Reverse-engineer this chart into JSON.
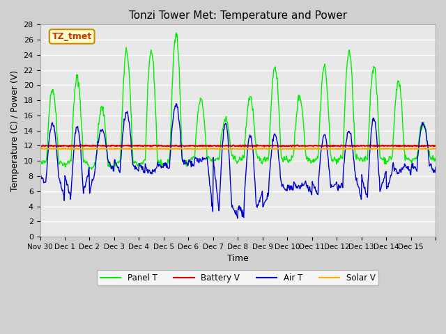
{
  "title": "Tonzi Tower Met: Temperature and Power",
  "xlabel": "Time",
  "ylabel": "Temperature (C) / Power (V)",
  "ylim": [
    0,
    28
  ],
  "yticks": [
    0,
    2,
    4,
    6,
    8,
    10,
    12,
    14,
    16,
    18,
    20,
    22,
    24,
    26,
    28
  ],
  "bg_color": "#e8e8e8",
  "grid_color": "white",
  "label_box": "TZ_tmet",
  "label_box_color": "#cc3300",
  "label_box_bg": "#ffffcc",
  "legend_colors": [
    "#00ee00",
    "#dd0000",
    "#0000cc",
    "#ffaa00"
  ],
  "battery_v": 12.0,
  "solar_v": 11.6,
  "xtick_positions": [
    0,
    1,
    2,
    3,
    4,
    5,
    6,
    7,
    8,
    9,
    10,
    11,
    12,
    13,
    14,
    15,
    16
  ],
  "xtick_labels": [
    "Nov 30",
    "Dec 1",
    "Dec 2",
    "Dec 3",
    "Dec 4",
    "Dec 5",
    "Dec 6",
    "Dec 7",
    "Dec 8",
    "Dec 9",
    "Dec 10",
    "Dec 11",
    "Dec 12",
    "Dec 13",
    "Dec 14",
    "Dec 15",
    ""
  ],
  "panel_T_peaks": [
    19.5,
    21.0,
    17.0,
    24.5,
    24.5,
    27.0,
    18.0,
    15.5,
    18.5,
    22.5,
    18.5,
    22.5,
    24.5,
    22.5,
    20.5,
    15.0
  ],
  "panel_T_mins": [
    10.0,
    10.0,
    9.5,
    10.0,
    10.0,
    10.0,
    10.5,
    10.5,
    10.5,
    10.5,
    10.5,
    10.5,
    10.5,
    10.5,
    10.5,
    10.5
  ],
  "air_T_peaks": [
    15.0,
    14.5,
    14.0,
    16.5,
    8.5,
    17.5,
    10.0,
    15.0,
    13.5,
    13.5,
    6.5,
    13.5,
    14.0,
    15.5,
    8.5,
    15.0
  ],
  "air_T_mins": [
    7.0,
    4.8,
    9.0,
    8.5,
    8.5,
    9.0,
    9.5,
    3.0,
    2.8,
    5.8,
    6.2,
    5.5,
    7.0,
    5.0,
    8.5,
    8.5
  ]
}
